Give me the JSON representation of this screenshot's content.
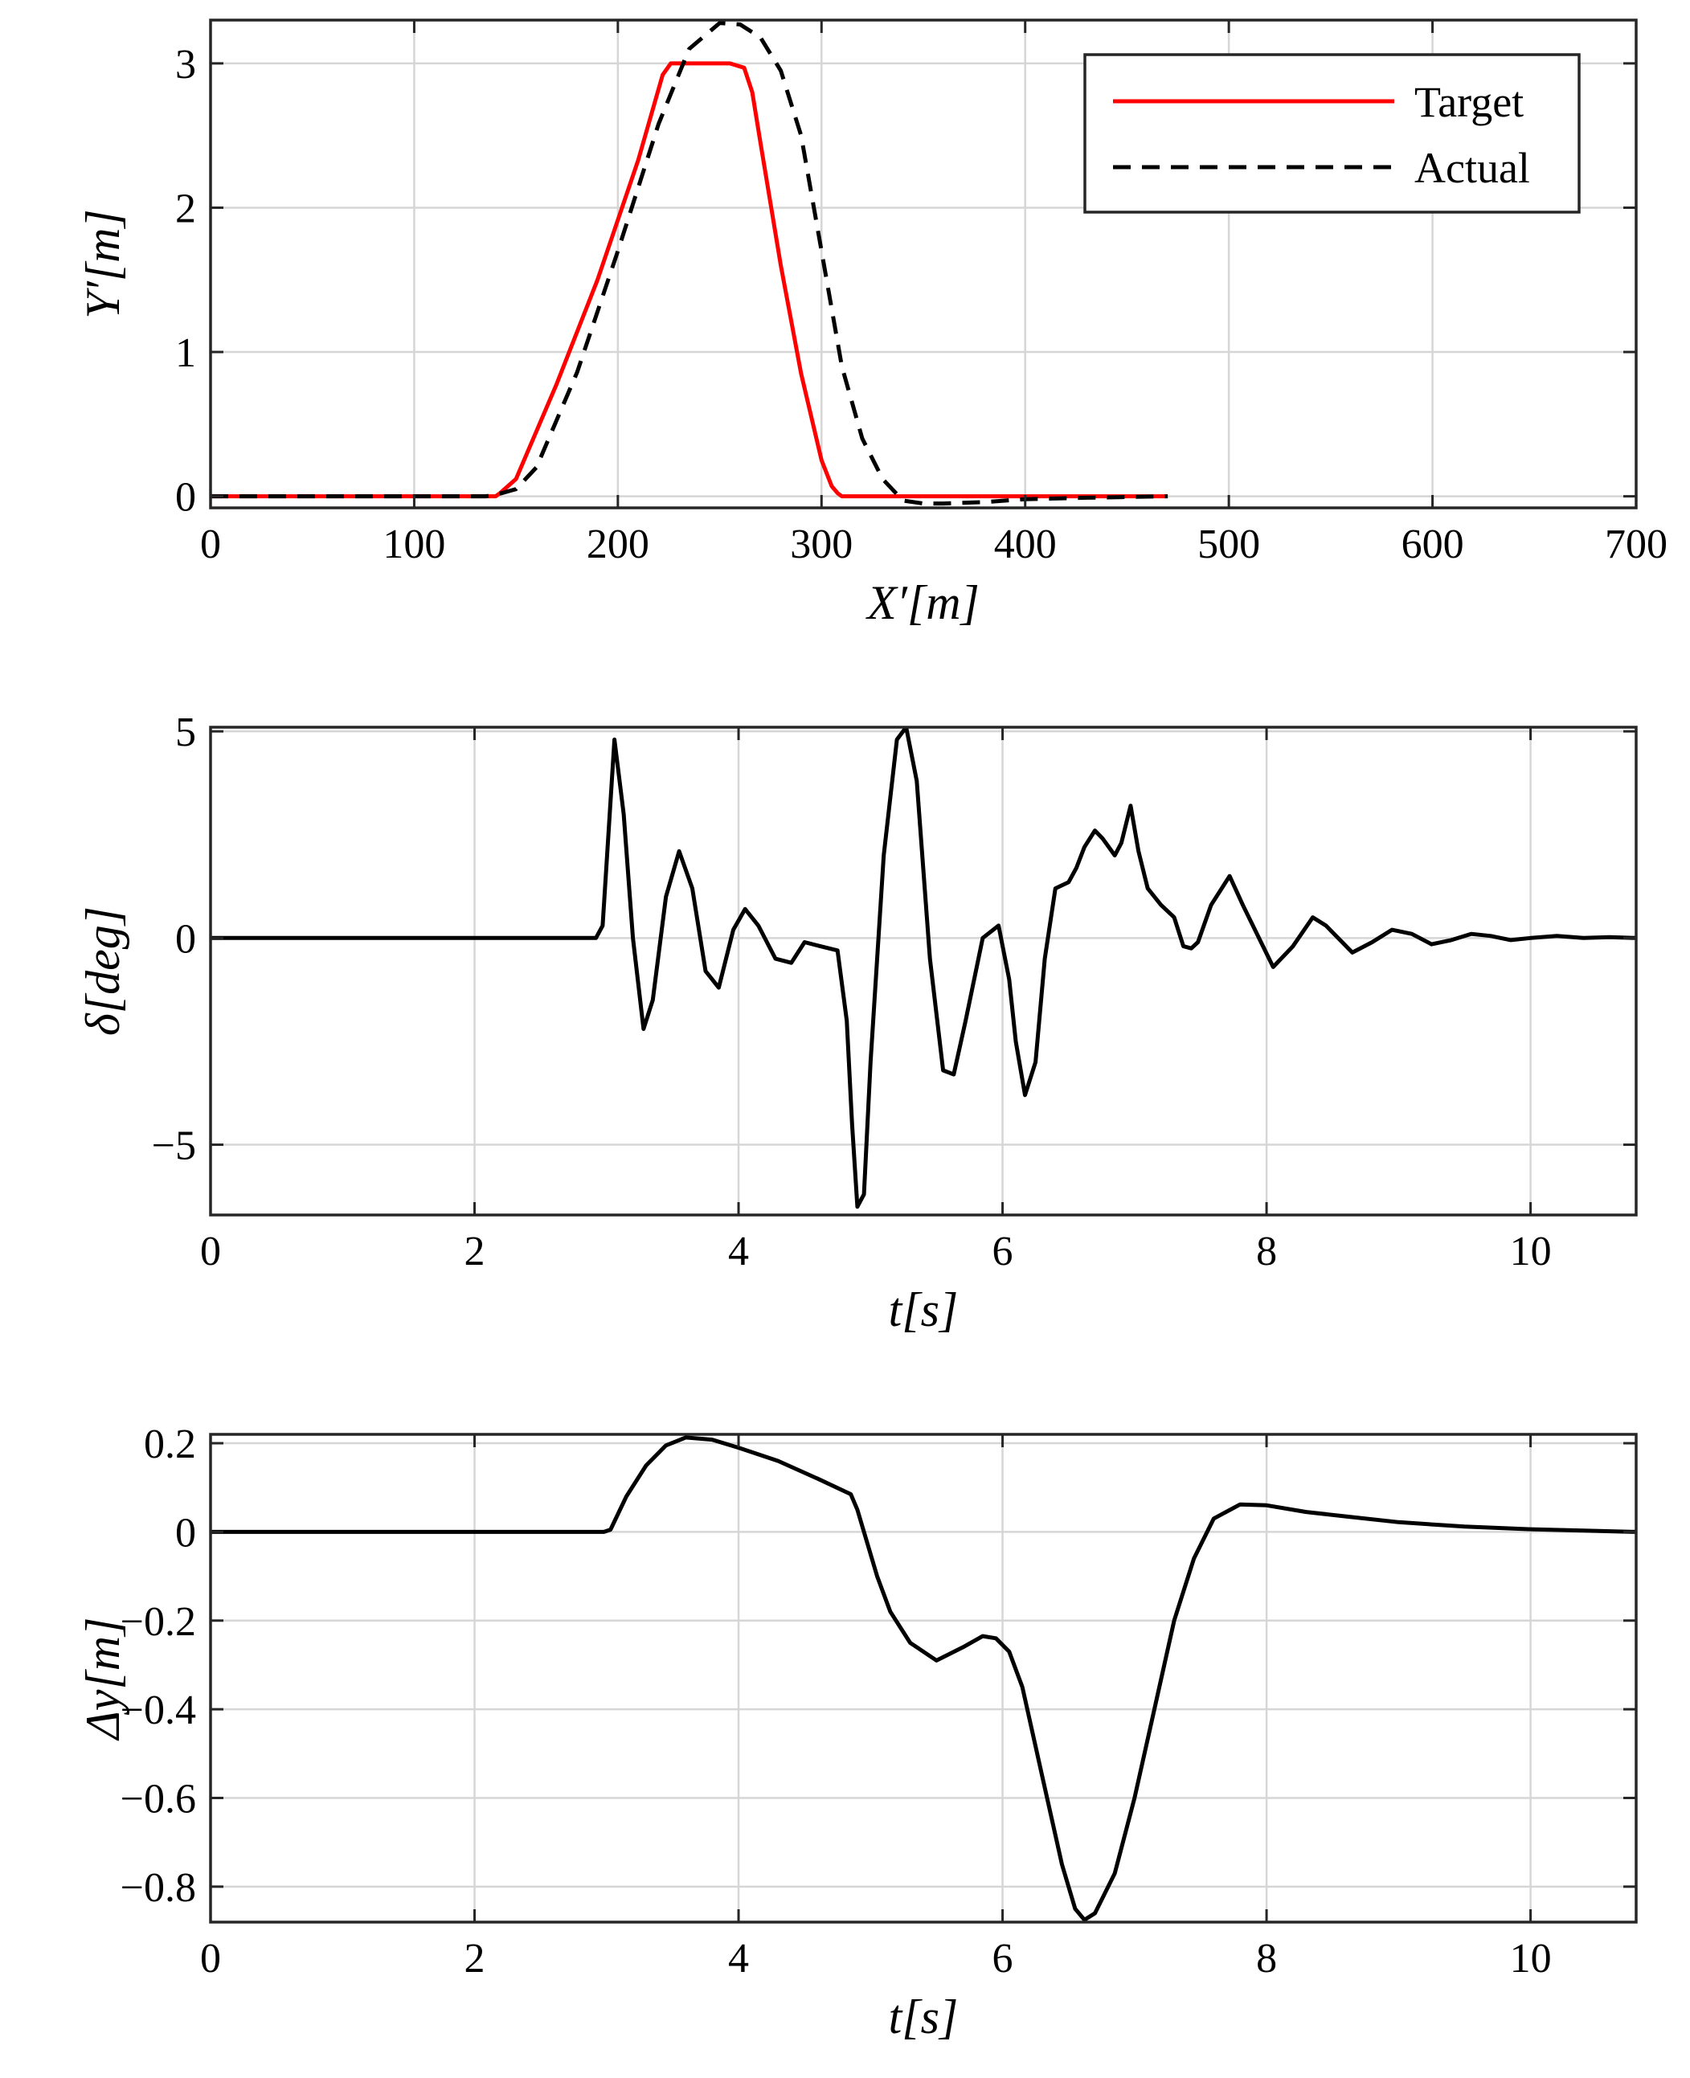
{
  "chart_data": [
    {
      "type": "line",
      "id": "trajectory",
      "xlabel": "X′[m]",
      "ylabel": "Y′[m]",
      "xlim": [
        0,
        700
      ],
      "ylim": [
        -0.08,
        3.3
      ],
      "xticks": [
        "0",
        "100",
        "200",
        "300",
        "400",
        "500",
        "600",
        "700"
      ],
      "xtick_values": [
        0,
        100,
        200,
        300,
        400,
        500,
        600,
        700
      ],
      "yticks": [
        "0",
        "1",
        "2",
        "3"
      ],
      "ytick_values": [
        0,
        1,
        2,
        3
      ],
      "grid": true,
      "legend": {
        "position": "top-right",
        "entries": [
          "Target",
          "Actual"
        ]
      },
      "series": [
        {
          "name": "Target",
          "color": "#ff0000",
          "style": "solid",
          "x": [
            0,
            140,
            142,
            150,
            170,
            190,
            210,
            222,
            226,
            230,
            240,
            255,
            262,
            266,
            270,
            280,
            290,
            300,
            305,
            308,
            310,
            320,
            400,
            470
          ],
          "y": [
            0,
            0,
            0.02,
            0.12,
            0.78,
            1.5,
            2.33,
            2.92,
            3.0,
            3.0,
            3.0,
            3.0,
            2.97,
            2.8,
            2.45,
            1.6,
            0.85,
            0.25,
            0.07,
            0.02,
            0,
            0,
            0,
            0
          ]
        },
        {
          "name": "Actual",
          "color": "#000000",
          "style": "dashed",
          "x": [
            0,
            135,
            140,
            150,
            160,
            180,
            200,
            220,
            235,
            250,
            260,
            270,
            280,
            290,
            300,
            310,
            320,
            330,
            340,
            350,
            360,
            380,
            400,
            430,
            470
          ],
          "y": [
            0,
            0,
            0.01,
            0.05,
            0.2,
            0.86,
            1.7,
            2.58,
            3.1,
            3.28,
            3.27,
            3.18,
            2.95,
            2.5,
            1.7,
            0.9,
            0.4,
            0.12,
            -0.03,
            -0.05,
            -0.05,
            -0.04,
            -0.02,
            -0.01,
            0
          ]
        }
      ]
    },
    {
      "type": "line",
      "id": "steering",
      "xlabel": "t[s]",
      "ylabel": "δ[deg]",
      "xlim": [
        0,
        10.8
      ],
      "ylim": [
        -6.7,
        5.1
      ],
      "xticks": [
        "0",
        "2",
        "4",
        "6",
        "8",
        "10"
      ],
      "xtick_values": [
        0,
        2,
        4,
        6,
        8,
        10
      ],
      "yticks": [
        "5",
        "0",
        "−5"
      ],
      "ytick_values": [
        5,
        0,
        -5
      ],
      "grid": true,
      "series": [
        {
          "name": "δ",
          "color": "#000000",
          "style": "solid",
          "x": [
            0,
            2.92,
            2.97,
            3.06,
            3.13,
            3.2,
            3.28,
            3.35,
            3.45,
            3.55,
            3.65,
            3.75,
            3.85,
            3.96,
            4.05,
            4.15,
            4.28,
            4.4,
            4.5,
            4.62,
            4.75,
            4.82,
            4.86,
            4.9,
            4.95,
            5.0,
            5.1,
            5.2,
            5.27,
            5.35,
            5.45,
            5.55,
            5.63,
            5.72,
            5.85,
            5.97,
            6.05,
            6.1,
            6.17,
            6.25,
            6.32,
            6.4,
            6.5,
            6.56,
            6.62,
            6.7,
            6.76,
            6.85,
            6.9,
            6.97,
            7.03,
            7.1,
            7.2,
            7.3,
            7.37,
            7.43,
            7.48,
            7.58,
            7.72,
            7.82,
            8.05,
            8.2,
            8.35,
            8.45,
            8.65,
            8.8,
            8.95,
            9.1,
            9.25,
            9.4,
            9.55,
            9.7,
            9.85,
            10.0,
            10.2,
            10.4,
            10.6,
            10.8
          ],
          "y": [
            0,
            0,
            0.3,
            4.8,
            3.0,
            0.0,
            -2.2,
            -1.5,
            1.0,
            2.1,
            1.2,
            -0.8,
            -1.2,
            0.2,
            0.7,
            0.3,
            -0.5,
            -0.6,
            -0.1,
            -0.2,
            -0.3,
            -2.0,
            -4.5,
            -6.5,
            -6.2,
            -3.0,
            2.0,
            4.8,
            5.1,
            3.8,
            -0.5,
            -3.2,
            -3.3,
            -2.0,
            0.0,
            0.3,
            -1.0,
            -2.5,
            -3.8,
            -3.0,
            -0.5,
            1.2,
            1.35,
            1.7,
            2.2,
            2.6,
            2.4,
            2.0,
            2.3,
            3.2,
            2.1,
            1.2,
            0.8,
            0.5,
            -0.2,
            -0.25,
            -0.1,
            0.8,
            1.5,
            0.8,
            -0.7,
            -0.2,
            0.5,
            0.3,
            -0.35,
            -0.1,
            0.2,
            0.1,
            -0.15,
            -0.05,
            0.1,
            0.05,
            -0.05,
            0.0,
            0.05,
            0.0,
            0.02,
            0.0
          ]
        }
      ]
    },
    {
      "type": "line",
      "id": "lateral-error",
      "xlabel": "t[s]",
      "ylabel": "Δy[m]",
      "xlim": [
        0,
        10.8
      ],
      "ylim": [
        -0.88,
        0.22
      ],
      "xticks": [
        "0",
        "2",
        "4",
        "6",
        "8",
        "10"
      ],
      "xtick_values": [
        0,
        2,
        4,
        6,
        8,
        10
      ],
      "yticks": [
        "0.2",
        "0",
        "−0.2",
        "−0.4",
        "−0.6",
        "−0.8"
      ],
      "ytick_values": [
        0.2,
        0,
        -0.2,
        -0.4,
        -0.6,
        -0.8
      ],
      "grid": true,
      "series": [
        {
          "name": "Δy",
          "color": "#000000",
          "style": "solid",
          "x": [
            0,
            2.98,
            3.03,
            3.15,
            3.3,
            3.45,
            3.6,
            3.8,
            4.0,
            4.3,
            4.6,
            4.85,
            4.9,
            4.95,
            5.05,
            5.15,
            5.3,
            5.5,
            5.7,
            5.85,
            5.95,
            6.05,
            6.15,
            6.3,
            6.45,
            6.55,
            6.62,
            6.7,
            6.85,
            7.0,
            7.15,
            7.3,
            7.45,
            7.6,
            7.8,
            8.0,
            8.3,
            8.6,
            9.0,
            9.5,
            10.0,
            10.4,
            10.8
          ],
          "y": [
            0,
            0,
            0.005,
            0.08,
            0.15,
            0.195,
            0.213,
            0.208,
            0.19,
            0.16,
            0.12,
            0.085,
            0.05,
            0.0,
            -0.1,
            -0.18,
            -0.25,
            -0.29,
            -0.26,
            -0.235,
            -0.24,
            -0.27,
            -0.35,
            -0.55,
            -0.75,
            -0.85,
            -0.875,
            -0.86,
            -0.77,
            -0.6,
            -0.4,
            -0.2,
            -0.06,
            0.03,
            0.062,
            0.06,
            0.045,
            0.035,
            0.022,
            0.012,
            0.006,
            0.003,
            0.0
          ]
        }
      ]
    }
  ]
}
